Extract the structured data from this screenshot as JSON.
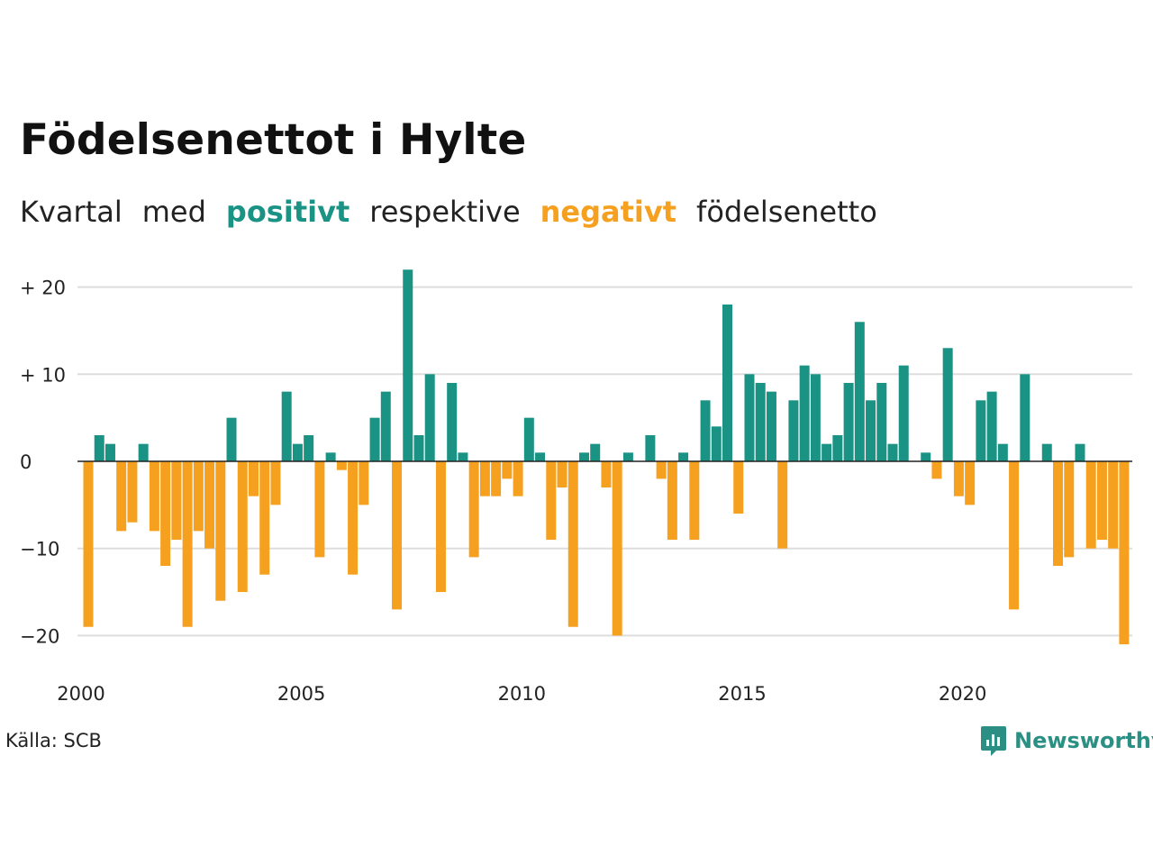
{
  "title": "Födelsenettot i Hylte",
  "subtitle": {
    "part1": "Kvartal",
    "part2": "med",
    "positive_word": "positivt",
    "part3": "respektive",
    "negative_word": "negativt",
    "part4": "födelsenetto"
  },
  "source": "Källa: SCB",
  "logo_text": "Newsworthy",
  "colors": {
    "positive": "#1a9384",
    "negative": "#f6a020",
    "grid": "#dddddd",
    "axis": "#222222"
  },
  "chart_data": {
    "type": "bar",
    "title": "Födelsenettot i Hylte",
    "x_start": "2000 Q1",
    "x_ticks": [
      "2000",
      "2005",
      "2010",
      "2015",
      "2020"
    ],
    "y_ticks": [
      {
        "value": 20,
        "label": "+ 20"
      },
      {
        "value": 10,
        "label": "+ 10"
      },
      {
        "value": 0,
        "label": "0"
      },
      {
        "value": -10,
        "label": "−10"
      },
      {
        "value": -20,
        "label": "−20"
      }
    ],
    "ylim": [
      -22,
      22.5
    ],
    "grid": true,
    "values": [
      -19,
      3,
      2,
      -8,
      -7,
      2,
      -8,
      -12,
      -9,
      -19,
      -8,
      -10,
      -16,
      5,
      -15,
      -4,
      -13,
      -5,
      8,
      2,
      3,
      -11,
      1,
      -1,
      -13,
      -5,
      5,
      8,
      -17,
      22,
      3,
      10,
      -15,
      9,
      1,
      -11,
      -4,
      -4,
      -2,
      -4,
      5,
      1,
      -9,
      -3,
      -19,
      1,
      2,
      -3,
      -20,
      1,
      0,
      3,
      -2,
      -9,
      1,
      -9,
      7,
      4,
      18,
      -6,
      10,
      9,
      8,
      -10,
      7,
      11,
      10,
      2,
      3,
      9,
      16,
      7,
      9,
      2,
      11,
      0,
      1,
      -2,
      13,
      -4,
      -5,
      7,
      8,
      2,
      -17,
      10,
      0,
      2,
      -12,
      -11,
      2,
      -10,
      -9,
      -10,
      -21
    ]
  }
}
